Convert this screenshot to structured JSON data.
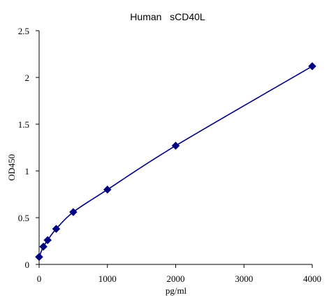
{
  "chart_data": {
    "type": "line",
    "title": "Human   sCD40L",
    "xlabel": "pg/ml",
    "ylabel": "OD450",
    "xlim": [
      0,
      4000
    ],
    "ylim": [
      0,
      2.5
    ],
    "x_ticks": [
      0,
      1000,
      2000,
      3000,
      4000
    ],
    "x_tick_labels": [
      "0",
      "1000",
      "2000",
      "3000",
      "4000"
    ],
    "y_ticks": [
      0,
      0.5,
      1,
      1.5,
      2,
      2.5
    ],
    "y_tick_labels": [
      "0",
      "0.5",
      "1",
      "1.5",
      "2",
      "2.5"
    ],
    "grid": false,
    "legend": "none",
    "series": [
      {
        "x": [
          0,
          62.5,
          125,
          250,
          500,
          1000,
          2000,
          4000
        ],
        "y": [
          0.08,
          0.19,
          0.26,
          0.38,
          0.56,
          0.8,
          1.27,
          2.12
        ],
        "color": "#000080",
        "marker": "diamond"
      }
    ]
  }
}
